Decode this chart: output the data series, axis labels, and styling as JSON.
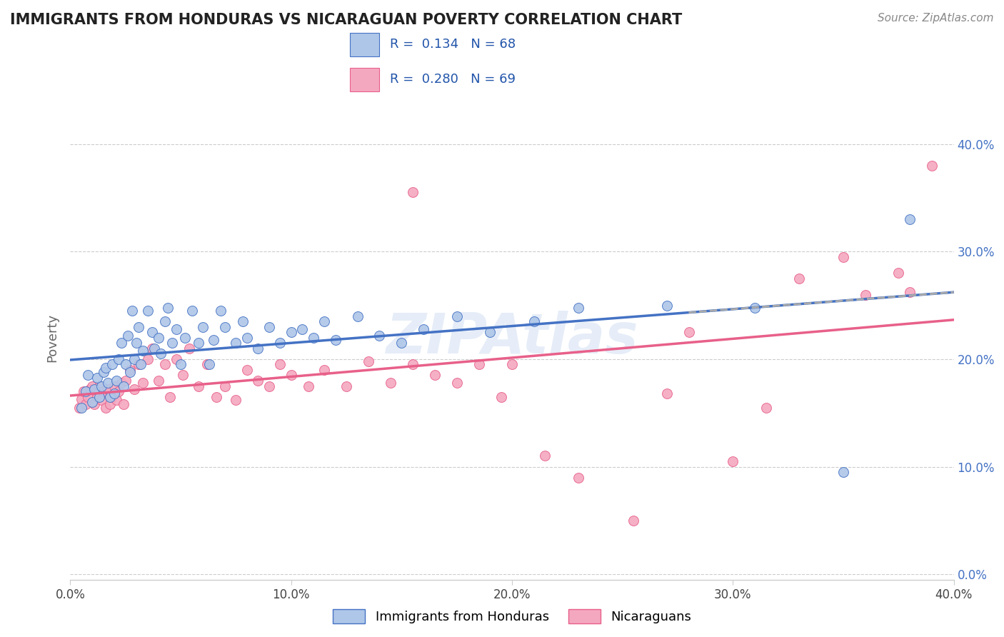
{
  "title": "IMMIGRANTS FROM HONDURAS VS NICARAGUAN POVERTY CORRELATION CHART",
  "source": "Source: ZipAtlas.com",
  "ylabel": "Poverty",
  "xlim": [
    0.0,
    0.4
  ],
  "ylim": [
    -0.005,
    0.445
  ],
  "yticks": [
    0.0,
    0.1,
    0.2,
    0.3,
    0.4
  ],
  "xticks": [
    0.0,
    0.1,
    0.2,
    0.3,
    0.4
  ],
  "blue_line_color": "#4472c4",
  "pink_line_color": "#e8608a",
  "blue_scatter_color": "#aec6e8",
  "pink_scatter_color": "#f4a8c0",
  "watermark": "ZIPAtlas",
  "blue_x": [
    0.005,
    0.007,
    0.008,
    0.01,
    0.011,
    0.012,
    0.013,
    0.014,
    0.015,
    0.016,
    0.017,
    0.018,
    0.019,
    0.02,
    0.021,
    0.022,
    0.023,
    0.024,
    0.025,
    0.026,
    0.027,
    0.028,
    0.029,
    0.03,
    0.031,
    0.032,
    0.033,
    0.035,
    0.037,
    0.038,
    0.04,
    0.041,
    0.043,
    0.044,
    0.046,
    0.048,
    0.05,
    0.052,
    0.055,
    0.058,
    0.06,
    0.063,
    0.065,
    0.068,
    0.07,
    0.075,
    0.078,
    0.08,
    0.085,
    0.09,
    0.095,
    0.1,
    0.105,
    0.11,
    0.115,
    0.12,
    0.13,
    0.14,
    0.15,
    0.16,
    0.175,
    0.19,
    0.21,
    0.23,
    0.27,
    0.31,
    0.35,
    0.38
  ],
  "blue_y": [
    0.155,
    0.17,
    0.185,
    0.16,
    0.172,
    0.183,
    0.165,
    0.175,
    0.188,
    0.192,
    0.178,
    0.165,
    0.195,
    0.168,
    0.18,
    0.2,
    0.215,
    0.175,
    0.195,
    0.222,
    0.188,
    0.245,
    0.2,
    0.215,
    0.23,
    0.195,
    0.208,
    0.245,
    0.225,
    0.21,
    0.22,
    0.205,
    0.235,
    0.248,
    0.215,
    0.228,
    0.195,
    0.22,
    0.245,
    0.215,
    0.23,
    0.195,
    0.218,
    0.245,
    0.23,
    0.215,
    0.235,
    0.22,
    0.21,
    0.23,
    0.215,
    0.225,
    0.228,
    0.22,
    0.235,
    0.218,
    0.24,
    0.222,
    0.215,
    0.228,
    0.24,
    0.225,
    0.235,
    0.248,
    0.25,
    0.248,
    0.095,
    0.33
  ],
  "pink_x": [
    0.004,
    0.005,
    0.006,
    0.007,
    0.008,
    0.009,
    0.01,
    0.011,
    0.012,
    0.013,
    0.014,
    0.015,
    0.016,
    0.017,
    0.018,
    0.019,
    0.02,
    0.021,
    0.022,
    0.023,
    0.024,
    0.025,
    0.027,
    0.029,
    0.031,
    0.033,
    0.035,
    0.037,
    0.04,
    0.043,
    0.045,
    0.048,
    0.051,
    0.054,
    0.058,
    0.062,
    0.066,
    0.07,
    0.075,
    0.08,
    0.085,
    0.09,
    0.095,
    0.1,
    0.108,
    0.115,
    0.125,
    0.135,
    0.145,
    0.155,
    0.165,
    0.175,
    0.185,
    0.2,
    0.215,
    0.23,
    0.255,
    0.28,
    0.3,
    0.315,
    0.33,
    0.35,
    0.36,
    0.375,
    0.39,
    0.195,
    0.155,
    0.27,
    0.38
  ],
  "pink_y": [
    0.155,
    0.163,
    0.17,
    0.158,
    0.165,
    0.172,
    0.175,
    0.158,
    0.165,
    0.175,
    0.162,
    0.17,
    0.155,
    0.172,
    0.158,
    0.165,
    0.175,
    0.162,
    0.17,
    0.178,
    0.158,
    0.18,
    0.19,
    0.172,
    0.195,
    0.178,
    0.2,
    0.21,
    0.18,
    0.195,
    0.165,
    0.2,
    0.185,
    0.21,
    0.175,
    0.195,
    0.165,
    0.175,
    0.162,
    0.19,
    0.18,
    0.175,
    0.195,
    0.185,
    0.175,
    0.19,
    0.175,
    0.198,
    0.178,
    0.195,
    0.185,
    0.178,
    0.195,
    0.195,
    0.11,
    0.09,
    0.05,
    0.225,
    0.105,
    0.155,
    0.275,
    0.295,
    0.26,
    0.28,
    0.38,
    0.165,
    0.355,
    0.168,
    0.262
  ]
}
